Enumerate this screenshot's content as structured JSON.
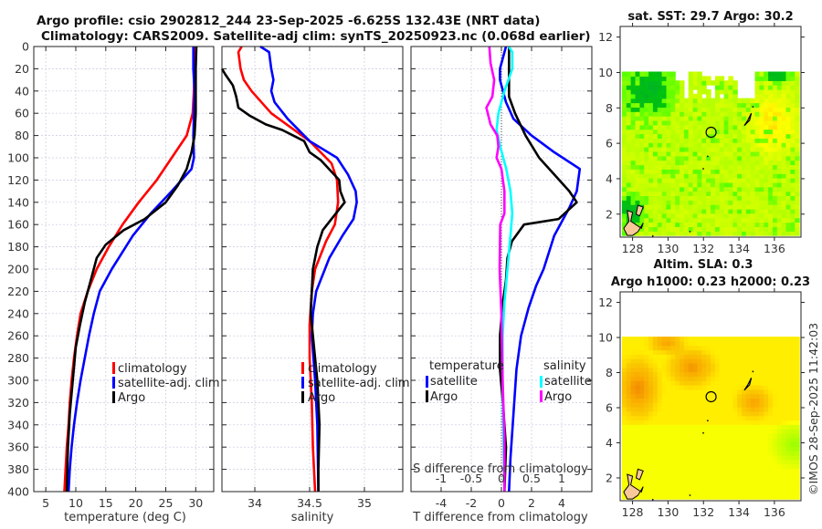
{
  "header": {
    "line1": "Argo profile: csio 2902812_244 23-Sep-2025 -6.625S 132.43E (NRT data)",
    "line2": "Climatology: CARS2009. Satellite-adj clim: synTS_20250923.nc (0.068d earlier)"
  },
  "colors": {
    "climatology": "#ff0000",
    "satellite": "#0000ff",
    "argo": "#000000",
    "sal_satellite": "#00ffff",
    "sal_argo": "#ff00ff"
  },
  "chart_data": [
    {
      "type": "line",
      "id": "temperature",
      "xlabel": "temperature (deg C)",
      "ylabel": "",
      "xlim": [
        3,
        33
      ],
      "ylim": [
        400,
        0
      ],
      "xticks": [
        5,
        10,
        15,
        20,
        25,
        30
      ],
      "yticks": [
        0,
        20,
        40,
        60,
        80,
        100,
        120,
        140,
        160,
        180,
        200,
        220,
        240,
        260,
        280,
        300,
        320,
        340,
        360,
        380,
        400
      ],
      "grid": true,
      "legend_position": "center-right",
      "series": [
        {
          "name": "climatology",
          "color_key": "climatology",
          "points": [
            [
              29.9,
              0
            ],
            [
              29.8,
              20
            ],
            [
              29.7,
              40
            ],
            [
              29.5,
              60
            ],
            [
              28.5,
              80
            ],
            [
              26.0,
              100
            ],
            [
              23.5,
              120
            ],
            [
              20.5,
              140
            ],
            [
              17.8,
              160
            ],
            [
              15.5,
              180
            ],
            [
              13.5,
              200
            ],
            [
              12.0,
              220
            ],
            [
              10.8,
              240
            ],
            [
              10.2,
              260
            ],
            [
              9.7,
              280
            ],
            [
              9.3,
              300
            ],
            [
              9.0,
              320
            ],
            [
              8.8,
              340
            ],
            [
              8.5,
              360
            ],
            [
              8.3,
              380
            ],
            [
              8.1,
              400
            ]
          ]
        },
        {
          "name": "satellite-adj. clim",
          "color_key": "satellite",
          "points": [
            [
              29.6,
              0
            ],
            [
              29.6,
              20
            ],
            [
              29.8,
              40
            ],
            [
              29.7,
              60
            ],
            [
              29.6,
              80
            ],
            [
              29.7,
              100
            ],
            [
              29.3,
              110
            ],
            [
              26.0,
              130
            ],
            [
              22.5,
              150
            ],
            [
              19.5,
              170
            ],
            [
              16.0,
              200
            ],
            [
              14.0,
              220
            ],
            [
              13.0,
              240
            ],
            [
              12.2,
              260
            ],
            [
              11.5,
              280
            ],
            [
              10.8,
              300
            ],
            [
              10.2,
              320
            ],
            [
              9.7,
              340
            ],
            [
              9.3,
              360
            ],
            [
              9.0,
              380
            ],
            [
              8.8,
              400
            ]
          ]
        },
        {
          "name": "Argo",
          "color_key": "argo",
          "points": [
            [
              30.1,
              0
            ],
            [
              30.0,
              20
            ],
            [
              30.0,
              40
            ],
            [
              30.0,
              60
            ],
            [
              29.8,
              80
            ],
            [
              29.3,
              95
            ],
            [
              28.5,
              110
            ],
            [
              27.0,
              125
            ],
            [
              25.0,
              140
            ],
            [
              21.5,
              155
            ],
            [
              18.0,
              165
            ],
            [
              15.0,
              178
            ],
            [
              13.5,
              190
            ],
            [
              12.5,
              210
            ],
            [
              11.5,
              230
            ],
            [
              10.7,
              250
            ],
            [
              10.0,
              270
            ],
            [
              9.5,
              300
            ],
            [
              9.0,
              330
            ],
            [
              8.7,
              360
            ],
            [
              8.5,
              400
            ]
          ]
        }
      ],
      "legend": [
        "climatology",
        "satellite-adj. clim",
        "Argo"
      ]
    },
    {
      "type": "line",
      "id": "salinity",
      "xlabel": "salinity",
      "xlim": [
        33.7,
        35.35
      ],
      "ylim": [
        400,
        0
      ],
      "xticks": [
        34,
        34.5,
        35
      ],
      "xticklabels": [
        "34",
        "34.5",
        "35"
      ],
      "grid": true,
      "legend_position": "center-right",
      "series": [
        {
          "name": "climatology",
          "color_key": "climatology",
          "points": [
            [
              33.88,
              0
            ],
            [
              33.85,
              5
            ],
            [
              33.87,
              20
            ],
            [
              33.9,
              30
            ],
            [
              33.97,
              40
            ],
            [
              34.15,
              60
            ],
            [
              34.5,
              85
            ],
            [
              34.7,
              105
            ],
            [
              34.75,
              120
            ],
            [
              34.76,
              140
            ],
            [
              34.73,
              160
            ],
            [
              34.65,
              175
            ],
            [
              34.55,
              200
            ],
            [
              34.52,
              220
            ],
            [
              34.5,
              250
            ],
            [
              34.5,
              280
            ],
            [
              34.52,
              320
            ],
            [
              34.53,
              360
            ],
            [
              34.55,
              400
            ]
          ]
        },
        {
          "name": "satellite-adj. clim",
          "color_key": "satellite",
          "points": [
            [
              34.05,
              0
            ],
            [
              34.13,
              5
            ],
            [
              34.15,
              20
            ],
            [
              34.17,
              30
            ],
            [
              34.15,
              40
            ],
            [
              34.18,
              50
            ],
            [
              34.3,
              65
            ],
            [
              34.5,
              85
            ],
            [
              34.75,
              100
            ],
            [
              34.85,
              115
            ],
            [
              34.92,
              130
            ],
            [
              34.93,
              140
            ],
            [
              34.9,
              155
            ],
            [
              34.8,
              170
            ],
            [
              34.68,
              190
            ],
            [
              34.62,
              205
            ],
            [
              34.56,
              220
            ],
            [
              34.53,
              240
            ],
            [
              34.52,
              260
            ],
            [
              34.55,
              300
            ],
            [
              34.57,
              340
            ],
            [
              34.58,
              400
            ]
          ]
        },
        {
          "name": "Argo",
          "color_key": "argo",
          "points": [
            [
              33.7,
              20
            ],
            [
              33.73,
              25
            ],
            [
              33.8,
              35
            ],
            [
              33.83,
              45
            ],
            [
              33.85,
              55
            ],
            [
              33.95,
              62
            ],
            [
              34.1,
              70
            ],
            [
              34.25,
              75
            ],
            [
              34.45,
              85
            ],
            [
              34.5,
              95
            ],
            [
              34.6,
              102
            ],
            [
              34.77,
              120
            ],
            [
              34.78,
              130
            ],
            [
              34.82,
              140
            ],
            [
              34.7,
              155
            ],
            [
              34.62,
              165
            ],
            [
              34.57,
              180
            ],
            [
              34.53,
              200
            ],
            [
              34.52,
              220
            ],
            [
              34.51,
              240
            ],
            [
              34.53,
              260
            ],
            [
              34.57,
              300
            ],
            [
              34.59,
              340
            ],
            [
              34.58,
              380
            ],
            [
              34.58,
              400
            ]
          ]
        }
      ],
      "legend": [
        "climatology",
        "satellite-adj. clim",
        "Argo"
      ]
    },
    {
      "type": "line",
      "id": "difference",
      "xlabel": "T difference from climatology",
      "xlabel2": "S difference from climatology",
      "xlim": [
        -6,
        6
      ],
      "xlim2": [
        -1.5,
        1.5
      ],
      "ylim": [
        400,
        0
      ],
      "xticks": [
        -4,
        -2,
        0,
        2,
        4
      ],
      "xticks2": [
        -1,
        -0.5,
        0,
        0.5,
        1
      ],
      "xticklabels2": [
        "-1",
        "-0.5",
        "0",
        "0.5",
        "1"
      ],
      "grid": true,
      "legend_position": "center",
      "series": [
        {
          "name": "temperature satellite",
          "color_key": "satellite",
          "axis": "T",
          "points": [
            [
              0.3,
              0
            ],
            [
              -0.1,
              20
            ],
            [
              -0.1,
              30
            ],
            [
              0.3,
              50
            ],
            [
              0.8,
              65
            ],
            [
              2.0,
              80
            ],
            [
              3.5,
              95
            ],
            [
              5.2,
              110
            ],
            [
              5.0,
              130
            ],
            [
              4.5,
              145
            ],
            [
              3.5,
              170
            ],
            [
              2.8,
              200
            ],
            [
              2.3,
              215
            ],
            [
              1.8,
              235
            ],
            [
              1.3,
              260
            ],
            [
              1.0,
              290
            ],
            [
              0.8,
              330
            ],
            [
              0.6,
              370
            ],
            [
              0.5,
              400
            ]
          ]
        },
        {
          "name": "temperature Argo",
          "color_key": "argo",
          "axis": "T",
          "points": [
            [
              0.5,
              0
            ],
            [
              0.5,
              20
            ],
            [
              0.5,
              45
            ],
            [
              0.9,
              60
            ],
            [
              1.6,
              80
            ],
            [
              2.5,
              100
            ],
            [
              3.5,
              115
            ],
            [
              4.5,
              130
            ],
            [
              5.0,
              140
            ],
            [
              3.8,
              155
            ],
            [
              1.5,
              160
            ],
            [
              0.7,
              175
            ],
            [
              0.4,
              190
            ],
            [
              0.3,
              210
            ],
            [
              0.1,
              230
            ],
            [
              -0.1,
              260
            ],
            [
              -0.1,
              290
            ],
            [
              0.1,
              320
            ],
            [
              0.3,
              360
            ],
            [
              0.2,
              400
            ]
          ]
        },
        {
          "name": "salinity satellite",
          "color_key": "sal_satellite",
          "axis": "S",
          "points": [
            [
              0.12,
              0
            ],
            [
              0.18,
              5
            ],
            [
              0.18,
              20
            ],
            [
              0.05,
              40
            ],
            [
              -0.05,
              60
            ],
            [
              -0.08,
              75
            ],
            [
              -0.02,
              90
            ],
            [
              0.08,
              110
            ],
            [
              0.15,
              130
            ],
            [
              0.18,
              150
            ],
            [
              0.15,
              170
            ],
            [
              0.1,
              200
            ],
            [
              0.05,
              230
            ],
            [
              0.02,
              260
            ],
            [
              0.02,
              300
            ],
            [
              0.03,
              340
            ],
            [
              0.05,
              400
            ]
          ]
        },
        {
          "name": "salinity Argo",
          "color_key": "sal_argo",
          "axis": "S",
          "points": [
            [
              -0.2,
              0
            ],
            [
              -0.18,
              15
            ],
            [
              -0.12,
              30
            ],
            [
              -0.15,
              45
            ],
            [
              -0.25,
              55
            ],
            [
              -0.18,
              70
            ],
            [
              -0.07,
              80
            ],
            [
              -0.05,
              90
            ],
            [
              -0.08,
              100
            ],
            [
              0.0,
              110
            ],
            [
              0.05,
              130
            ],
            [
              0.05,
              150
            ],
            [
              -0.02,
              160
            ],
            [
              -0.03,
              200
            ],
            [
              0.0,
              240
            ],
            [
              0.02,
              300
            ],
            [
              0.05,
              350
            ],
            [
              0.05,
              400
            ]
          ]
        }
      ],
      "legend": {
        "temperature_title": "temperature",
        "salinity_title": "salinity",
        "items": [
          "satellite",
          "Argo"
        ]
      }
    },
    {
      "type": "heatmap",
      "id": "sst-map",
      "title": "sat. SST: 29.7 Argo: 30.2",
      "xlim": [
        127.3,
        137.5
      ],
      "ylim": [
        0.7,
        12.6
      ],
      "xticks": [
        128,
        130,
        132,
        134,
        136
      ],
      "yticks": [
        2,
        4,
        6,
        8,
        10
      ],
      "data_extent_lat_max": 10,
      "marker": {
        "lon": 132.43,
        "lat": 6.625
      }
    },
    {
      "type": "heatmap",
      "id": "sla-map",
      "title": "Altim. SLA: 0.3",
      "subtitle": "Argo h1000: 0.23 h2000: 0.23",
      "xlim": [
        127.3,
        137.5
      ],
      "ylim": [
        0.7,
        12.6
      ],
      "xticks": [
        128,
        130,
        132,
        134,
        136
      ],
      "yticks": [
        2,
        4,
        6,
        8,
        10,
        12
      ],
      "data_extent_lat_max": 10,
      "marker": {
        "lon": 132.43,
        "lat": 6.625
      }
    }
  ],
  "footer": {
    "copyright": "©IMOS 28-Sep-2025 11:42:03"
  }
}
